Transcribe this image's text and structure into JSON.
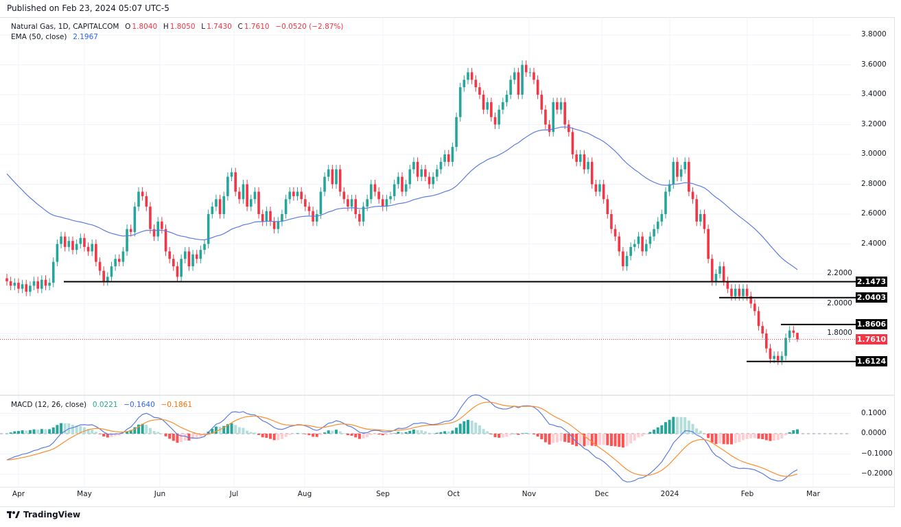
{
  "published": {
    "label": "Published on",
    "date": "Feb 23, 2024 05:07 UTC-5"
  },
  "legend": {
    "symbol": "Natural Gas, 1D, CAPITALCOM",
    "o_label": "O",
    "o": "1.8040",
    "h_label": "H",
    "h": "1.8050",
    "l_label": "L",
    "l": "1.7430",
    "c_label": "C",
    "c": "1.7610",
    "change": "−0.0520 (−2.87%)",
    "ema_label": "EMA (50, close)",
    "ema_value": "2.1967",
    "macd_label": "MACD (12, 26, close)",
    "macd_hist": "0.0221",
    "macd_line": "−0.1640",
    "macd_signal": "−0.1861"
  },
  "branding": "TradingView",
  "colors": {
    "up": "#26a69a",
    "down": "#f23645",
    "ema": "#5b7be0",
    "macd": "#5b7be0",
    "signal": "#ff8c2b",
    "level": "#000000",
    "last_price": "#f23645"
  },
  "chart_data": [
    {
      "type": "candlestick",
      "title": "Natural Gas, 1D, CAPITALCOM",
      "ylim": [
        1.5,
        3.85
      ],
      "y_ticks": [
        "3.8000",
        "3.6000",
        "3.4000",
        "3.2000",
        "3.0000",
        "2.8000",
        "2.6000",
        "2.4000",
        "2.2000",
        "2.0000",
        "1.8000"
      ],
      "x_ticks": [
        "Apr",
        "May",
        "Jun",
        "Jul",
        "Aug",
        "Sep",
        "Oct",
        "Nov",
        "Dec",
        "2024",
        "Feb",
        "Mar"
      ],
      "closes": [
        2.15,
        2.12,
        2.14,
        2.1,
        2.13,
        2.08,
        2.12,
        2.15,
        2.1,
        2.16,
        2.12,
        2.14,
        2.28,
        2.4,
        2.45,
        2.38,
        2.42,
        2.36,
        2.4,
        2.44,
        2.38,
        2.35,
        2.4,
        2.28,
        2.22,
        2.15,
        2.18,
        2.25,
        2.3,
        2.28,
        2.35,
        2.5,
        2.48,
        2.65,
        2.75,
        2.72,
        2.65,
        2.5,
        2.45,
        2.55,
        2.5,
        2.35,
        2.3,
        2.25,
        2.18,
        2.3,
        2.35,
        2.25,
        2.33,
        2.3,
        2.36,
        2.4,
        2.6,
        2.65,
        2.7,
        2.6,
        2.72,
        2.85,
        2.88,
        2.75,
        2.7,
        2.8,
        2.65,
        2.7,
        2.75,
        2.6,
        2.55,
        2.62,
        2.55,
        2.5,
        2.55,
        2.6,
        2.7,
        2.75,
        2.72,
        2.75,
        2.7,
        2.65,
        2.62,
        2.55,
        2.6,
        2.75,
        2.85,
        2.9,
        2.8,
        2.9,
        2.75,
        2.7,
        2.65,
        2.7,
        2.6,
        2.55,
        2.65,
        2.7,
        2.8,
        2.75,
        2.7,
        2.65,
        2.7,
        2.72,
        2.8,
        2.85,
        2.75,
        2.8,
        2.9,
        2.95,
        2.85,
        2.9,
        2.85,
        2.8,
        2.85,
        2.9,
        2.95,
        3.0,
        2.95,
        3.05,
        3.25,
        3.45,
        3.5,
        3.55,
        3.5,
        3.45,
        3.4,
        3.3,
        3.35,
        3.25,
        3.2,
        3.3,
        3.35,
        3.4,
        3.5,
        3.55,
        3.4,
        3.6,
        3.55,
        3.55,
        3.5,
        3.4,
        3.3,
        3.2,
        3.15,
        3.35,
        3.3,
        3.35,
        3.2,
        3.15,
        3.0,
        2.95,
        3.0,
        2.9,
        2.95,
        2.8,
        2.75,
        2.8,
        2.7,
        2.6,
        2.5,
        2.45,
        2.35,
        2.25,
        2.32,
        2.38,
        2.4,
        2.45,
        2.35,
        2.4,
        2.45,
        2.5,
        2.55,
        2.6,
        2.75,
        2.8,
        2.95,
        2.85,
        2.9,
        2.95,
        2.75,
        2.7,
        2.55,
        2.6,
        2.5,
        2.3,
        2.15,
        2.2,
        2.25,
        2.15,
        2.1,
        2.05,
        2.1,
        2.05,
        2.1,
        2.05,
        2.0,
        1.95,
        1.85,
        1.8,
        1.7,
        1.63,
        1.65,
        1.62,
        1.65,
        1.77,
        1.82,
        1.804,
        1.761
      ],
      "last_candle": {
        "open": 1.804,
        "high": 1.805,
        "low": 1.743,
        "close": 1.761
      },
      "series": [
        {
          "name": "EMA (50, close)",
          "last": 2.1967
        }
      ],
      "levels": [
        {
          "value": 2.1473,
          "label": "2.1473"
        },
        {
          "value": 2.0403,
          "label": "2.0403"
        },
        {
          "value": 1.8606,
          "label": "1.8606"
        },
        {
          "value": 1.6124,
          "label": "1.6124"
        }
      ],
      "last_price": {
        "value": 1.761,
        "label": "1.7610"
      },
      "grid": true
    },
    {
      "type": "macd",
      "title": "MACD (12, 26, close)",
      "ylim": [
        -0.25,
        0.13
      ],
      "y_ticks": [
        "0.1000",
        "0.0000",
        "−0.1000",
        "−0.2000"
      ],
      "y_tick_values": [
        0.1,
        0,
        -0.1,
        -0.2
      ],
      "last": {
        "histogram": 0.0221,
        "macd": -0.164,
        "signal": -0.1861
      }
    }
  ]
}
